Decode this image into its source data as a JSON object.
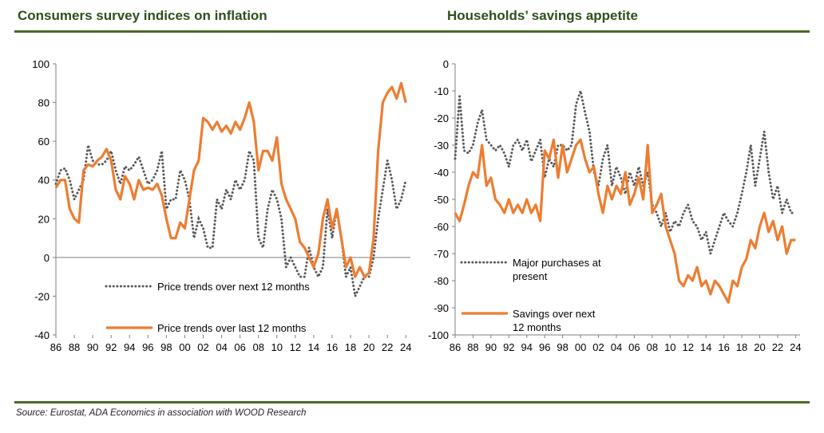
{
  "titles": {
    "left": "Consumers survey indices on inflation",
    "right": "Households’ savings appetite"
  },
  "source": "Source: Eurostat, ADA Economics in association with WOOD Research",
  "colors": {
    "orange": "#ed7d31",
    "dotted": "#595959",
    "rule": "#4d6b2a",
    "title": "#2f4f1c"
  },
  "chart_data": [
    {
      "type": "line",
      "title": "Consumers survey indices on inflation",
      "ylim": [
        -40,
        100
      ],
      "yticks": [
        100,
        80,
        60,
        40,
        20,
        0,
        -20,
        -40
      ],
      "xlim": [
        1986,
        2024.5
      ],
      "xtick_labels": [
        "86",
        "88",
        "90",
        "92",
        "94",
        "96",
        "98",
        "00",
        "02",
        "04",
        "06",
        "08",
        "10",
        "12",
        "14",
        "16",
        "18",
        "20",
        "22",
        "24"
      ],
      "legend_placement": "bottom-center",
      "series": [
        {
          "name": "Price trends over next 12 months",
          "style": "dotted",
          "color": "#595959",
          "x": [
            1986,
            1986.5,
            1987,
            1987.5,
            1988,
            1988.5,
            1989,
            1989.5,
            1990,
            1990.5,
            1991,
            1991.5,
            1992,
            1992.5,
            1993,
            1993.5,
            1994,
            1994.5,
            1995,
            1995.5,
            1996,
            1996.5,
            1997,
            1997.5,
            1998,
            1998.5,
            1999,
            1999.5,
            2000,
            2000.5,
            2001,
            2001.5,
            2002,
            2002.5,
            2003,
            2003.5,
            2004,
            2004.5,
            2005,
            2005.5,
            2006,
            2006.5,
            2007,
            2007.5,
            2008,
            2008.5,
            2009,
            2009.5,
            2010,
            2010.5,
            2011,
            2011.5,
            2012,
            2012.5,
            2013,
            2013.5,
            2014,
            2014.5,
            2015,
            2015.5,
            2016,
            2016.5,
            2017,
            2017.5,
            2018,
            2018.5,
            2019,
            2019.5,
            2020,
            2020.5,
            2021,
            2021.5,
            2022,
            2022.5,
            2023,
            2023.5,
            2024
          ],
          "values": [
            38,
            45,
            46,
            40,
            30,
            35,
            40,
            58,
            50,
            48,
            48,
            50,
            55,
            45,
            38,
            47,
            45,
            48,
            52,
            45,
            38,
            40,
            45,
            55,
            25,
            30,
            30,
            45,
            40,
            30,
            10,
            20,
            15,
            5,
            5,
            30,
            25,
            35,
            30,
            40,
            35,
            40,
            55,
            50,
            10,
            5,
            25,
            35,
            30,
            20,
            -5,
            0,
            -5,
            -10,
            -10,
            5,
            -5,
            -10,
            -5,
            25,
            10,
            25,
            10,
            -10,
            -5,
            -20,
            -15,
            -10,
            -10,
            0,
            20,
            35,
            50,
            40,
            25,
            30,
            40
          ]
        },
        {
          "name": "Price trends over last 12 months",
          "style": "solid",
          "color": "#ed7d31",
          "x": [
            1986,
            1986.5,
            1987,
            1987.5,
            1988,
            1988.5,
            1989,
            1989.5,
            1990,
            1990.5,
            1991,
            1991.5,
            1992,
            1992.5,
            1993,
            1993.5,
            1994,
            1994.5,
            1995,
            1995.5,
            1996,
            1996.5,
            1997,
            1997.5,
            1998,
            1998.5,
            1999,
            1999.5,
            2000,
            2000.5,
            2001,
            2001.5,
            2002,
            2002.5,
            2003,
            2003.5,
            2004,
            2004.5,
            2005,
            2005.5,
            2006,
            2006.5,
            2007,
            2007.5,
            2008,
            2008.5,
            2009,
            2009.5,
            2010,
            2010.5,
            2011,
            2011.5,
            2012,
            2012.5,
            2013,
            2013.5,
            2014,
            2014.5,
            2015,
            2015.5,
            2016,
            2016.5,
            2017,
            2017.5,
            2018,
            2018.5,
            2019,
            2019.5,
            2020,
            2020.5,
            2021,
            2021.5,
            2022,
            2022.5,
            2023,
            2023.5,
            2024
          ],
          "values": [
            36,
            40,
            40,
            25,
            20,
            18,
            45,
            48,
            47,
            50,
            52,
            56,
            50,
            35,
            30,
            42,
            38,
            30,
            40,
            35,
            36,
            35,
            38,
            32,
            20,
            10,
            10,
            18,
            15,
            30,
            45,
            50,
            72,
            70,
            66,
            70,
            65,
            68,
            64,
            70,
            66,
            72,
            80,
            70,
            45,
            55,
            55,
            50,
            62,
            38,
            30,
            25,
            20,
            8,
            5,
            0,
            -5,
            2,
            20,
            30,
            15,
            25,
            10,
            -5,
            0,
            -10,
            -5,
            -10,
            -8,
            10,
            55,
            80,
            85,
            88,
            82,
            90,
            80
          ]
        }
      ]
    },
    {
      "type": "line",
      "title": "Households’ savings appetite",
      "ylim": [
        -100,
        0
      ],
      "yticks": [
        0,
        -10,
        -20,
        -30,
        -40,
        -50,
        -60,
        -70,
        -80,
        -90,
        -100
      ],
      "xlim": [
        1986,
        2024.5
      ],
      "xtick_labels": [
        "86",
        "88",
        "90",
        "92",
        "94",
        "96",
        "98",
        "00",
        "02",
        "04",
        "06",
        "08",
        "10",
        "12",
        "14",
        "16",
        "18",
        "20",
        "22",
        "24"
      ],
      "legend_placement": "bottom-left",
      "series": [
        {
          "name": "Major purchases at present",
          "style": "dotted",
          "color": "#595959",
          "x": [
            1986,
            1986.5,
            1987,
            1987.5,
            1988,
            1988.5,
            1989,
            1989.5,
            1990,
            1990.5,
            1991,
            1991.5,
            1992,
            1992.5,
            1993,
            1993.5,
            1994,
            1994.5,
            1995,
            1995.5,
            1996,
            1996.5,
            1997,
            1997.5,
            1998,
            1998.5,
            1999,
            1999.5,
            2000,
            2000.5,
            2001,
            2001.5,
            2002,
            2002.5,
            2003,
            2003.5,
            2004,
            2004.5,
            2005,
            2005.5,
            2006,
            2006.5,
            2007,
            2007.5,
            2008,
            2008.5,
            2009,
            2009.5,
            2010,
            2010.5,
            2011,
            2011.5,
            2012,
            2012.5,
            2013,
            2013.5,
            2014,
            2014.5,
            2015,
            2015.5,
            2016,
            2016.5,
            2017,
            2017.5,
            2018,
            2018.5,
            2019,
            2019.5,
            2020,
            2020.5,
            2021,
            2021.5,
            2022,
            2022.5,
            2023,
            2023.5,
            2024
          ],
          "values": [
            -35,
            -12,
            -32,
            -33,
            -30,
            -22,
            -17,
            -28,
            -30,
            -32,
            -30,
            -33,
            -38,
            -30,
            -28,
            -32,
            -28,
            -36,
            -32,
            -28,
            -42,
            -35,
            -38,
            -30,
            -30,
            -32,
            -30,
            -15,
            -10,
            -18,
            -25,
            -40,
            -45,
            -35,
            -30,
            -45,
            -38,
            -42,
            -48,
            -40,
            -45,
            -38,
            -45,
            -40,
            -52,
            -55,
            -60,
            -55,
            -62,
            -58,
            -60,
            -55,
            -52,
            -58,
            -60,
            -65,
            -62,
            -70,
            -65,
            -60,
            -55,
            -58,
            -60,
            -55,
            -48,
            -40,
            -30,
            -45,
            -35,
            -25,
            -40,
            -50,
            -45,
            -55,
            -50,
            -55,
            -55
          ]
        },
        {
          "name": "Savings over next 12 months",
          "style": "solid",
          "color": "#ed7d31",
          "x": [
            1986,
            1986.5,
            1987,
            1987.5,
            1988,
            1988.5,
            1989,
            1989.5,
            1990,
            1990.5,
            1991,
            1991.5,
            1992,
            1992.5,
            1993,
            1993.5,
            1994,
            1994.5,
            1995,
            1995.5,
            1996,
            1996.5,
            1997,
            1997.5,
            1998,
            1998.5,
            1999,
            1999.5,
            2000,
            2000.5,
            2001,
            2001.5,
            2002,
            2002.5,
            2003,
            2003.5,
            2004,
            2004.5,
            2005,
            2005.5,
            2006,
            2006.5,
            2007,
            2007.5,
            2008,
            2008.5,
            2009,
            2009.5,
            2010,
            2010.5,
            2011,
            2011.5,
            2012,
            2012.5,
            2013,
            2013.5,
            2014,
            2014.5,
            2015,
            2015.5,
            2016,
            2016.5,
            2017,
            2017.5,
            2018,
            2018.5,
            2019,
            2019.5,
            2020,
            2020.5,
            2021,
            2021.5,
            2022,
            2022.5,
            2023,
            2023.5,
            2024
          ],
          "values": [
            -55,
            -58,
            -52,
            -45,
            -40,
            -42,
            -30,
            -45,
            -42,
            -50,
            -52,
            -55,
            -50,
            -55,
            -52,
            -55,
            -50,
            -55,
            -52,
            -58,
            -32,
            -35,
            -28,
            -42,
            -30,
            -40,
            -35,
            -30,
            -28,
            -35,
            -40,
            -38,
            -48,
            -55,
            -45,
            -50,
            -45,
            -48,
            -40,
            -52,
            -48,
            -42,
            -50,
            -30,
            -55,
            -52,
            -48,
            -60,
            -65,
            -70,
            -80,
            -82,
            -78,
            -80,
            -75,
            -82,
            -80,
            -85,
            -80,
            -82,
            -85,
            -88,
            -80,
            -82,
            -75,
            -72,
            -65,
            -68,
            -60,
            -55,
            -62,
            -58,
            -65,
            -60,
            -70,
            -65,
            -65
          ]
        }
      ]
    }
  ]
}
